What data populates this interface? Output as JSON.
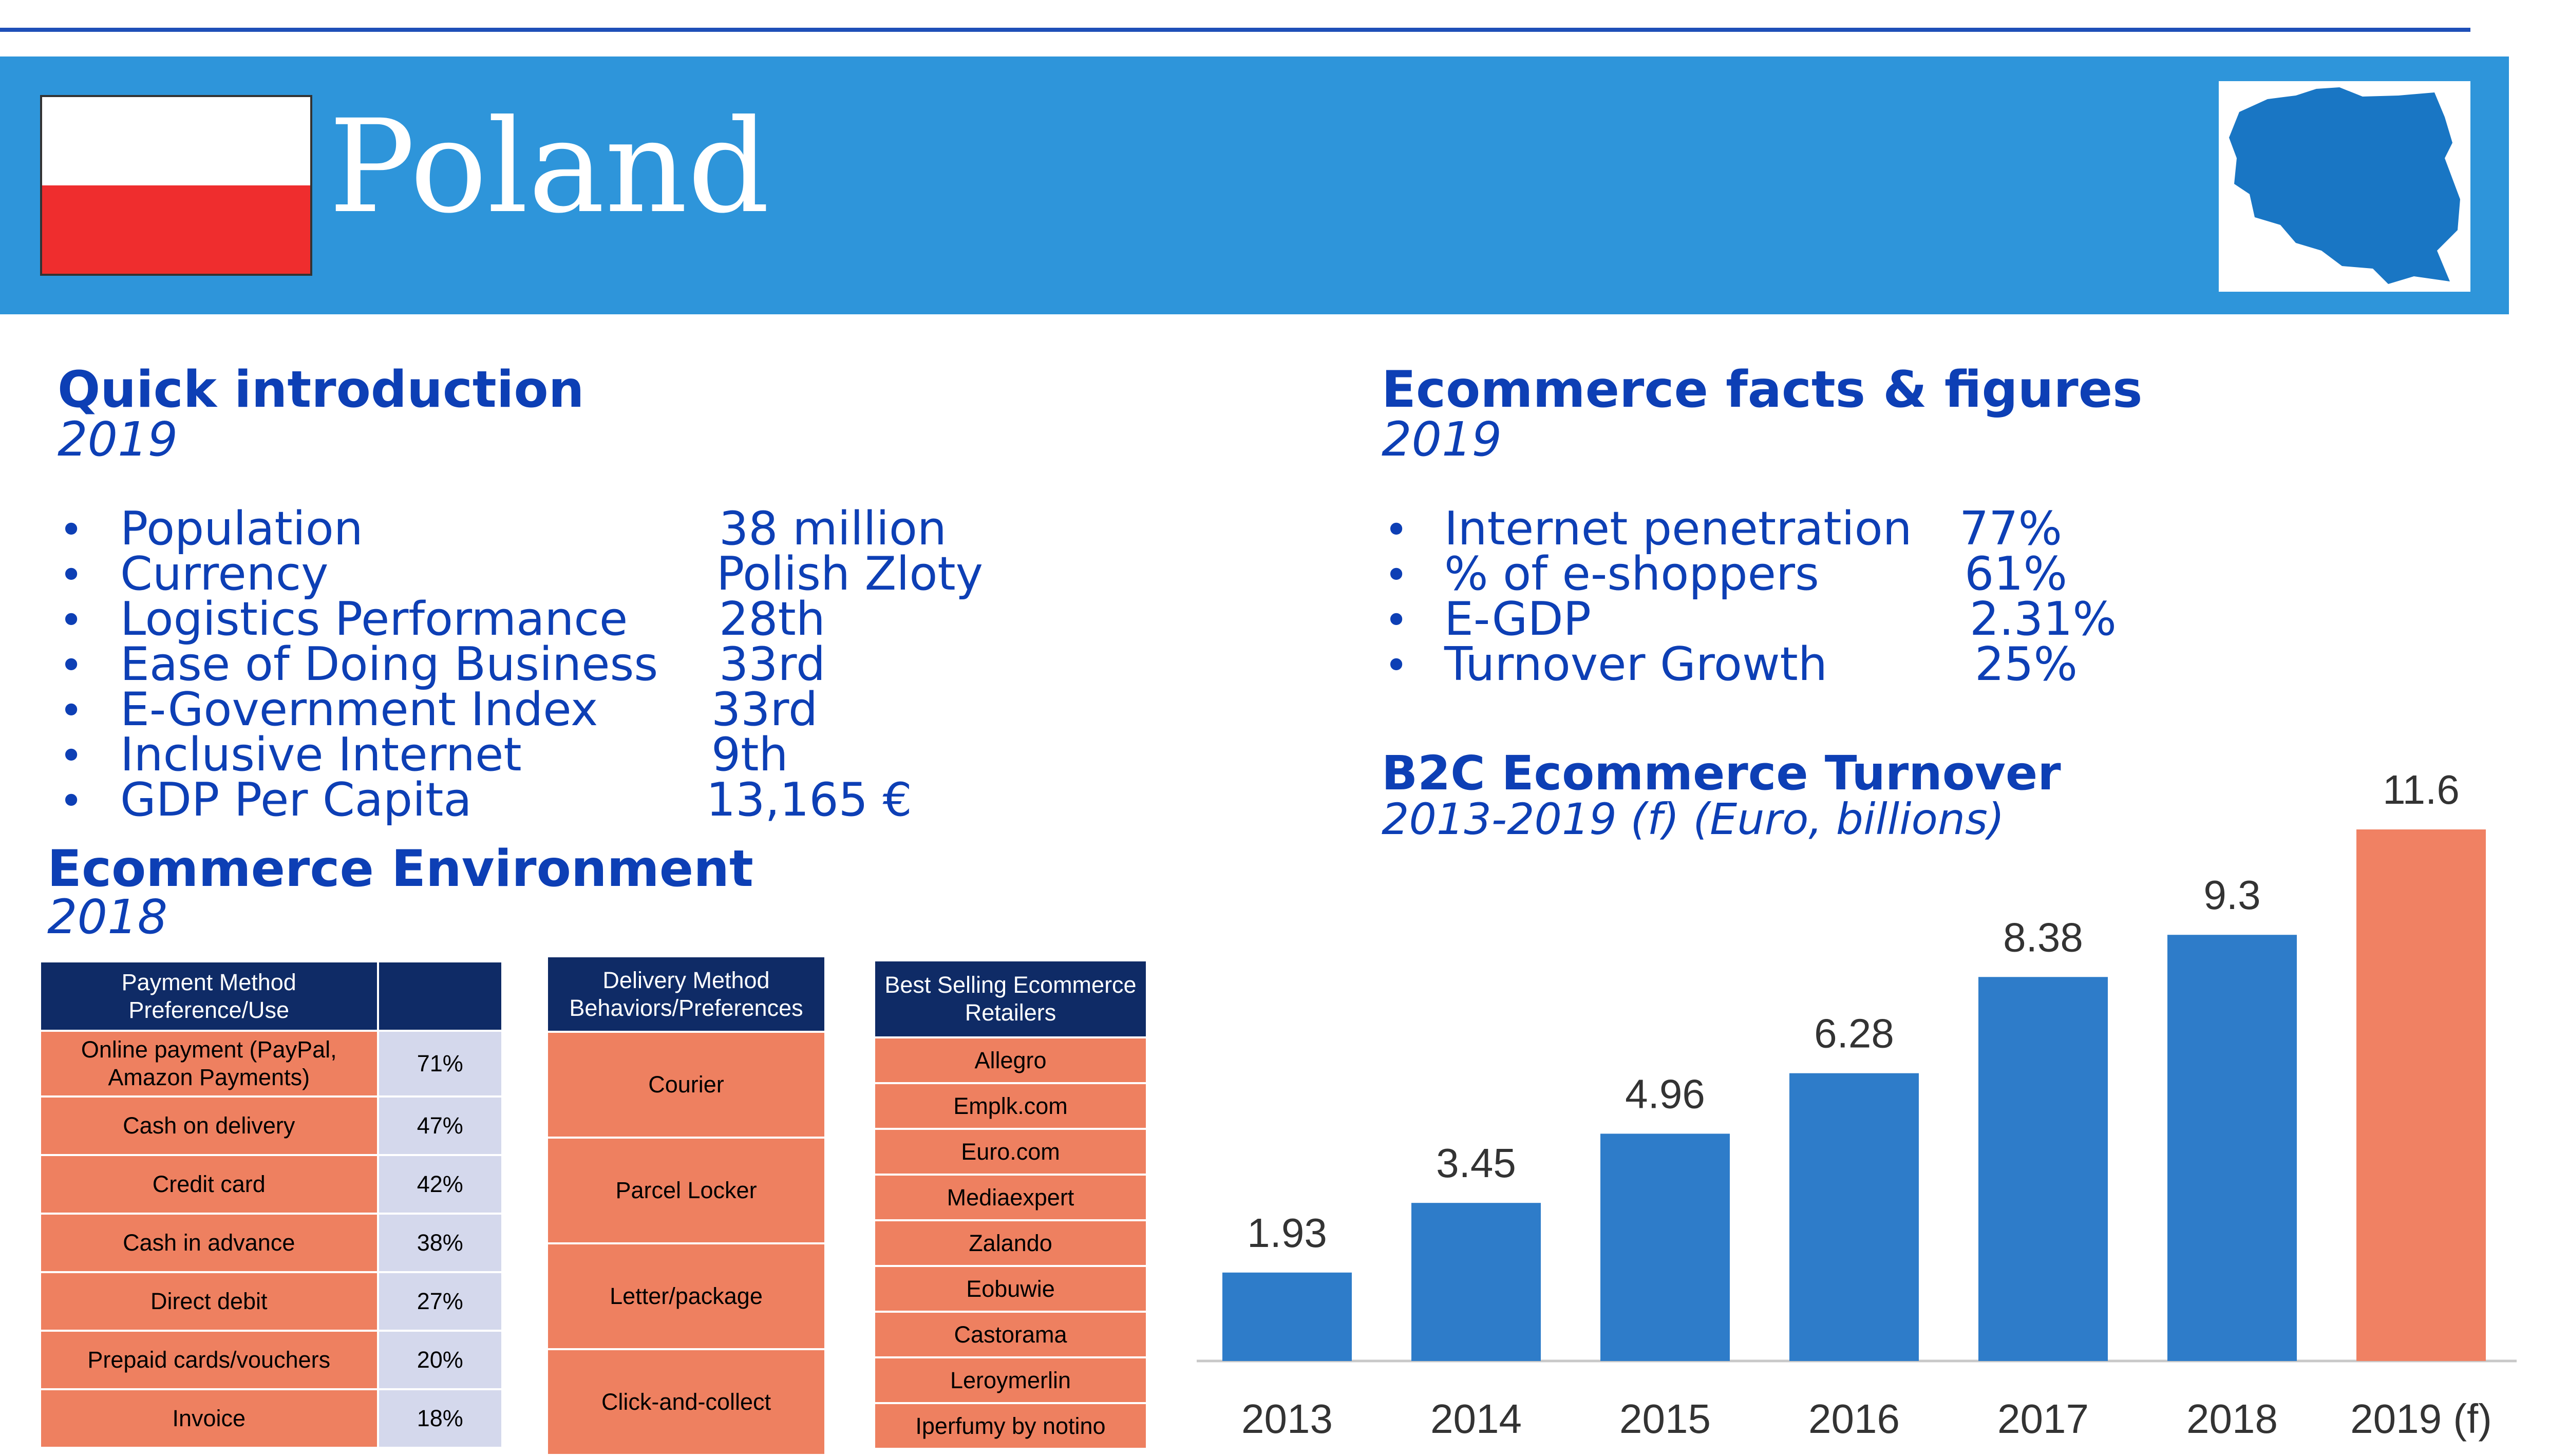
{
  "header": {
    "country": "Poland",
    "flag_colors": [
      "#ffffff",
      "#ef2d2e"
    ],
    "banner_color": "#2e95da"
  },
  "intro": {
    "title": "Quick introduction",
    "year": "2019",
    "items": [
      {
        "label": "Population",
        "value": "38 million"
      },
      {
        "label": "Currency",
        "value": "Polish Zloty"
      },
      {
        "label": "Logistics Performance",
        "value": "28th"
      },
      {
        "label": "Ease of Doing Business",
        "value": "33rd"
      },
      {
        "label": "E-Government Index",
        "value": "33rd"
      },
      {
        "label": "Inclusive Internet",
        "value": "9th"
      },
      {
        "label": "GDP Per Capita",
        "value": "13,165 €"
      }
    ]
  },
  "facts": {
    "title": "Ecommerce facts & figures",
    "year": "2019",
    "items": [
      {
        "label": "Internet penetration",
        "value": "77%"
      },
      {
        "label": "% of e-shoppers",
        "value": "61%"
      },
      {
        "label": "E-GDP",
        "value": "2.31%"
      },
      {
        "label": "Turnover Growth",
        "value": "25%"
      }
    ]
  },
  "environment": {
    "title": "Ecommerce Environment",
    "year": "2018",
    "payment": {
      "header": "Payment Method Preference/Use",
      "rows": [
        {
          "label": "Online payment (PayPal, Amazon Payments)",
          "value": "71%"
        },
        {
          "label": "Cash on delivery",
          "value": "47%"
        },
        {
          "label": "Credit card",
          "value": "42%"
        },
        {
          "label": "Cash in advance",
          "value": "38%"
        },
        {
          "label": "Direct debit",
          "value": "27%"
        },
        {
          "label": "Prepaid cards/vouchers",
          "value": "20%"
        },
        {
          "label": "Invoice",
          "value": "18%"
        }
      ]
    },
    "delivery": {
      "header": "Delivery Method Behaviors/Preferences",
      "rows": [
        "Courier",
        "Parcel Locker",
        "Letter/package",
        "Click-and-collect"
      ]
    },
    "retailers": {
      "header": "Best Selling Ecommerce Retailers",
      "rows": [
        "Allegro",
        "Emplk.com",
        "Euro.com",
        "Mediaexpert",
        "Zalando",
        "Eobuwie",
        "Castorama",
        "Leroymerlin",
        "Iperfumy by notino"
      ]
    }
  },
  "chart_data": {
    "type": "bar",
    "title": "B2C Ecommerce Turnover",
    "subtitle": "2013-2019 (f) (Euro, billions)",
    "categories": [
      "2013",
      "2014",
      "2015",
      "2016",
      "2017",
      "2018",
      "2019 (f)"
    ],
    "values": [
      1.93,
      3.45,
      4.96,
      6.28,
      8.38,
      9.3,
      11.6
    ],
    "value_labels": [
      "1.93",
      "3.45",
      "4.96",
      "6.28",
      "8.38",
      "9.3",
      "11.6"
    ],
    "colors": [
      "#2e7cc9",
      "#2e7cc9",
      "#2e7cc9",
      "#2e7cc9",
      "#2e7cc9",
      "#2e7cc9",
      "#f08163"
    ],
    "ylim": [
      0,
      11.6
    ],
    "grid": false,
    "legend": "none"
  }
}
